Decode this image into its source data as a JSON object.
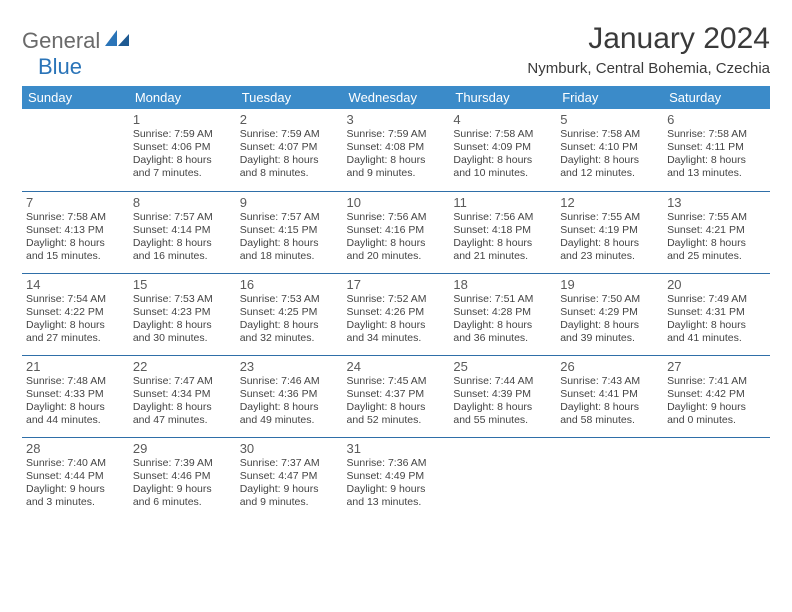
{
  "logo": {
    "general": "General",
    "blue": "Blue"
  },
  "title": "January 2024",
  "location": "Nymburk, Central Bohemia, Czechia",
  "colors": {
    "header_bg": "#3b8bc9",
    "header_text": "#ffffff",
    "row_border": "#2f6fa8",
    "text": "#444444",
    "logo_gray": "#6a6a6a",
    "logo_blue": "#2a74b8"
  },
  "day_headers": [
    "Sunday",
    "Monday",
    "Tuesday",
    "Wednesday",
    "Thursday",
    "Friday",
    "Saturday"
  ],
  "weeks": [
    [
      {
        "n": "",
        "sr": "",
        "ss": "",
        "d1": "",
        "d2": ""
      },
      {
        "n": "1",
        "sr": "Sunrise: 7:59 AM",
        "ss": "Sunset: 4:06 PM",
        "d1": "Daylight: 8 hours",
        "d2": "and 7 minutes."
      },
      {
        "n": "2",
        "sr": "Sunrise: 7:59 AM",
        "ss": "Sunset: 4:07 PM",
        "d1": "Daylight: 8 hours",
        "d2": "and 8 minutes."
      },
      {
        "n": "3",
        "sr": "Sunrise: 7:59 AM",
        "ss": "Sunset: 4:08 PM",
        "d1": "Daylight: 8 hours",
        "d2": "and 9 minutes."
      },
      {
        "n": "4",
        "sr": "Sunrise: 7:58 AM",
        "ss": "Sunset: 4:09 PM",
        "d1": "Daylight: 8 hours",
        "d2": "and 10 minutes."
      },
      {
        "n": "5",
        "sr": "Sunrise: 7:58 AM",
        "ss": "Sunset: 4:10 PM",
        "d1": "Daylight: 8 hours",
        "d2": "and 12 minutes."
      },
      {
        "n": "6",
        "sr": "Sunrise: 7:58 AM",
        "ss": "Sunset: 4:11 PM",
        "d1": "Daylight: 8 hours",
        "d2": "and 13 minutes."
      }
    ],
    [
      {
        "n": "7",
        "sr": "Sunrise: 7:58 AM",
        "ss": "Sunset: 4:13 PM",
        "d1": "Daylight: 8 hours",
        "d2": "and 15 minutes."
      },
      {
        "n": "8",
        "sr": "Sunrise: 7:57 AM",
        "ss": "Sunset: 4:14 PM",
        "d1": "Daylight: 8 hours",
        "d2": "and 16 minutes."
      },
      {
        "n": "9",
        "sr": "Sunrise: 7:57 AM",
        "ss": "Sunset: 4:15 PM",
        "d1": "Daylight: 8 hours",
        "d2": "and 18 minutes."
      },
      {
        "n": "10",
        "sr": "Sunrise: 7:56 AM",
        "ss": "Sunset: 4:16 PM",
        "d1": "Daylight: 8 hours",
        "d2": "and 20 minutes."
      },
      {
        "n": "11",
        "sr": "Sunrise: 7:56 AM",
        "ss": "Sunset: 4:18 PM",
        "d1": "Daylight: 8 hours",
        "d2": "and 21 minutes."
      },
      {
        "n": "12",
        "sr": "Sunrise: 7:55 AM",
        "ss": "Sunset: 4:19 PM",
        "d1": "Daylight: 8 hours",
        "d2": "and 23 minutes."
      },
      {
        "n": "13",
        "sr": "Sunrise: 7:55 AM",
        "ss": "Sunset: 4:21 PM",
        "d1": "Daylight: 8 hours",
        "d2": "and 25 minutes."
      }
    ],
    [
      {
        "n": "14",
        "sr": "Sunrise: 7:54 AM",
        "ss": "Sunset: 4:22 PM",
        "d1": "Daylight: 8 hours",
        "d2": "and 27 minutes."
      },
      {
        "n": "15",
        "sr": "Sunrise: 7:53 AM",
        "ss": "Sunset: 4:23 PM",
        "d1": "Daylight: 8 hours",
        "d2": "and 30 minutes."
      },
      {
        "n": "16",
        "sr": "Sunrise: 7:53 AM",
        "ss": "Sunset: 4:25 PM",
        "d1": "Daylight: 8 hours",
        "d2": "and 32 minutes."
      },
      {
        "n": "17",
        "sr": "Sunrise: 7:52 AM",
        "ss": "Sunset: 4:26 PM",
        "d1": "Daylight: 8 hours",
        "d2": "and 34 minutes."
      },
      {
        "n": "18",
        "sr": "Sunrise: 7:51 AM",
        "ss": "Sunset: 4:28 PM",
        "d1": "Daylight: 8 hours",
        "d2": "and 36 minutes."
      },
      {
        "n": "19",
        "sr": "Sunrise: 7:50 AM",
        "ss": "Sunset: 4:29 PM",
        "d1": "Daylight: 8 hours",
        "d2": "and 39 minutes."
      },
      {
        "n": "20",
        "sr": "Sunrise: 7:49 AM",
        "ss": "Sunset: 4:31 PM",
        "d1": "Daylight: 8 hours",
        "d2": "and 41 minutes."
      }
    ],
    [
      {
        "n": "21",
        "sr": "Sunrise: 7:48 AM",
        "ss": "Sunset: 4:33 PM",
        "d1": "Daylight: 8 hours",
        "d2": "and 44 minutes."
      },
      {
        "n": "22",
        "sr": "Sunrise: 7:47 AM",
        "ss": "Sunset: 4:34 PM",
        "d1": "Daylight: 8 hours",
        "d2": "and 47 minutes."
      },
      {
        "n": "23",
        "sr": "Sunrise: 7:46 AM",
        "ss": "Sunset: 4:36 PM",
        "d1": "Daylight: 8 hours",
        "d2": "and 49 minutes."
      },
      {
        "n": "24",
        "sr": "Sunrise: 7:45 AM",
        "ss": "Sunset: 4:37 PM",
        "d1": "Daylight: 8 hours",
        "d2": "and 52 minutes."
      },
      {
        "n": "25",
        "sr": "Sunrise: 7:44 AM",
        "ss": "Sunset: 4:39 PM",
        "d1": "Daylight: 8 hours",
        "d2": "and 55 minutes."
      },
      {
        "n": "26",
        "sr": "Sunrise: 7:43 AM",
        "ss": "Sunset: 4:41 PM",
        "d1": "Daylight: 8 hours",
        "d2": "and 58 minutes."
      },
      {
        "n": "27",
        "sr": "Sunrise: 7:41 AM",
        "ss": "Sunset: 4:42 PM",
        "d1": "Daylight: 9 hours",
        "d2": "and 0 minutes."
      }
    ],
    [
      {
        "n": "28",
        "sr": "Sunrise: 7:40 AM",
        "ss": "Sunset: 4:44 PM",
        "d1": "Daylight: 9 hours",
        "d2": "and 3 minutes."
      },
      {
        "n": "29",
        "sr": "Sunrise: 7:39 AM",
        "ss": "Sunset: 4:46 PM",
        "d1": "Daylight: 9 hours",
        "d2": "and 6 minutes."
      },
      {
        "n": "30",
        "sr": "Sunrise: 7:37 AM",
        "ss": "Sunset: 4:47 PM",
        "d1": "Daylight: 9 hours",
        "d2": "and 9 minutes."
      },
      {
        "n": "31",
        "sr": "Sunrise: 7:36 AM",
        "ss": "Sunset: 4:49 PM",
        "d1": "Daylight: 9 hours",
        "d2": "and 13 minutes."
      },
      {
        "n": "",
        "sr": "",
        "ss": "",
        "d1": "",
        "d2": ""
      },
      {
        "n": "",
        "sr": "",
        "ss": "",
        "d1": "",
        "d2": ""
      },
      {
        "n": "",
        "sr": "",
        "ss": "",
        "d1": "",
        "d2": ""
      }
    ]
  ]
}
